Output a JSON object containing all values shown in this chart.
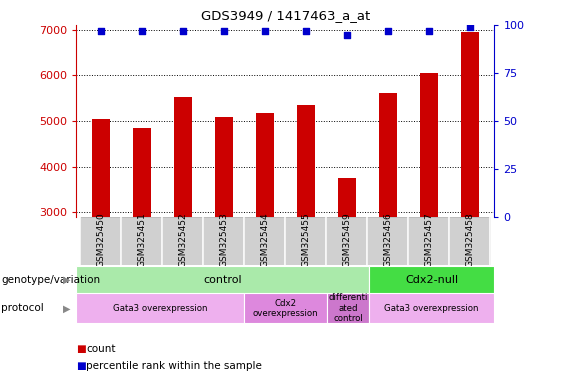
{
  "title": "GDS3949 / 1417463_a_at",
  "samples": [
    "GSM325450",
    "GSM325451",
    "GSM325452",
    "GSM325453",
    "GSM325454",
    "GSM325455",
    "GSM325459",
    "GSM325456",
    "GSM325457",
    "GSM325458"
  ],
  "counts": [
    5050,
    4850,
    5530,
    5080,
    5180,
    5340,
    3760,
    5620,
    6060,
    6940
  ],
  "percentile_ranks": [
    97,
    97,
    97,
    97,
    97,
    97,
    95,
    97,
    97,
    99
  ],
  "bar_color": "#cc0000",
  "dot_color": "#0000cc",
  "ylim_left": [
    2900,
    7100
  ],
  "ylim_right": [
    0,
    100
  ],
  "yticks_left": [
    3000,
    4000,
    5000,
    6000,
    7000
  ],
  "yticks_right": [
    0,
    25,
    50,
    75,
    100
  ],
  "ylabel_left_color": "#cc0000",
  "ylabel_right_color": "#0000cc",
  "sample_box_color": "#d0d0d0",
  "sample_box_edge": "#888888",
  "genotype_groups": [
    {
      "label": "control",
      "start": 0,
      "end": 7,
      "color": "#aaeaaa"
    },
    {
      "label": "Cdx2-null",
      "start": 7,
      "end": 10,
      "color": "#44dd44"
    }
  ],
  "protocol_groups": [
    {
      "label": "Gata3 overexpression",
      "start": 0,
      "end": 4,
      "color": "#eeb0ee"
    },
    {
      "label": "Cdx2\noverexpression",
      "start": 4,
      "end": 6,
      "color": "#dd88dd"
    },
    {
      "label": "differenti\nated\ncontrol",
      "start": 6,
      "end": 7,
      "color": "#cc77cc"
    },
    {
      "label": "Gata3 overexpression",
      "start": 7,
      "end": 10,
      "color": "#eeb0ee"
    }
  ],
  "legend_items": [
    {
      "label": "count",
      "color": "#cc0000"
    },
    {
      "label": "percentile rank within the sample",
      "color": "#0000cc"
    }
  ],
  "left_label_genotype": "genotype/variation",
  "left_label_protocol": "protocol",
  "background_color": "#ffffff"
}
